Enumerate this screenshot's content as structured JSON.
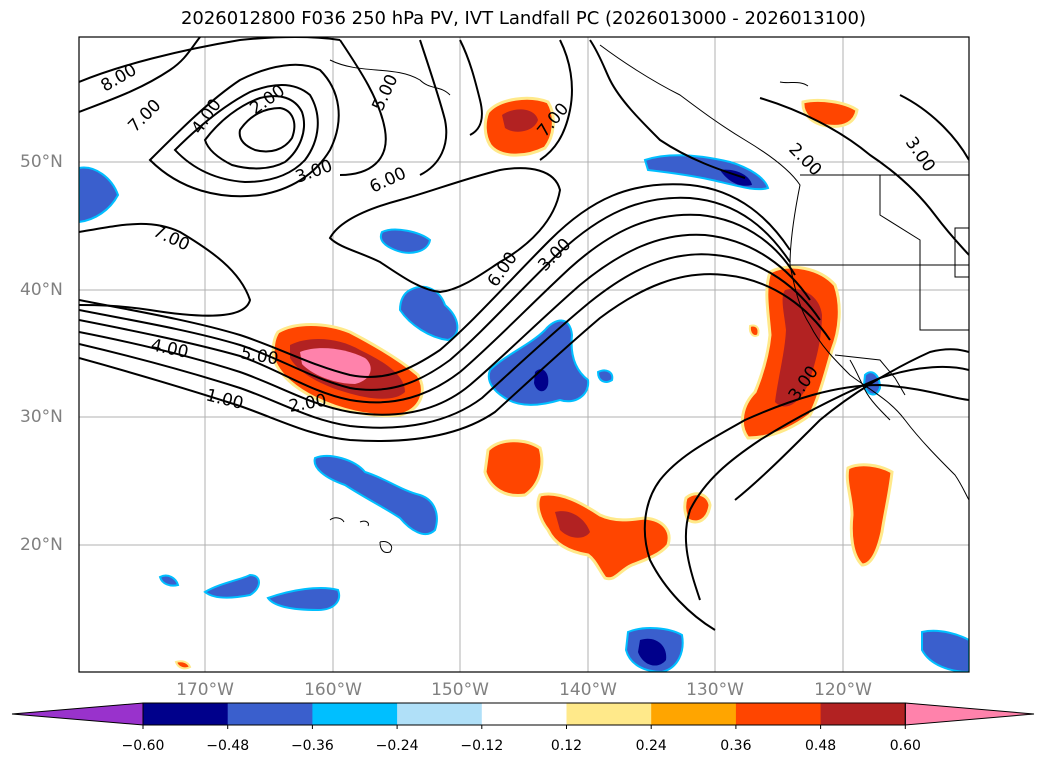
{
  "title": "2026012800 F036 250 hPa PV, IVT Landfall PC (2026013000 - 2026013100)",
  "lat_labels": [
    "50°N",
    "40°N",
    "30°N",
    "20°N"
  ],
  "lon_labels": [
    "170°W",
    "160°W",
    "150°W",
    "140°W",
    "130°W",
    "120°W"
  ],
  "colorbar": {
    "ticks": [
      "−0.60",
      "−0.48",
      "−0.36",
      "−0.24",
      "−0.12",
      "0.12",
      "0.24",
      "0.36",
      "0.48",
      "0.60"
    ],
    "colors": [
      "#9932cc",
      "#00008b",
      "#3a5fcd",
      "#00bfff",
      "#b0e0f8",
      "#ffffff",
      "#ffe98a",
      "#ffa500",
      "#ff4500",
      "#b22222",
      "#ff82ab"
    ]
  },
  "contour_labels": [
    {
      "text": "8.00"
    },
    {
      "text": "7.00"
    },
    {
      "text": "4.00"
    },
    {
      "text": "2.00"
    },
    {
      "text": "5.00"
    },
    {
      "text": "3.00"
    },
    {
      "text": "6.00"
    },
    {
      "text": "7.00"
    },
    {
      "text": "7.00"
    },
    {
      "text": "2.00"
    },
    {
      "text": "3.00"
    },
    {
      "text": "6.00"
    },
    {
      "text": "3.00"
    },
    {
      "text": "4.00"
    },
    {
      "text": "5.00"
    },
    {
      "text": "1.00"
    },
    {
      "text": "2.00"
    },
    {
      "text": "3.00"
    }
  ]
}
